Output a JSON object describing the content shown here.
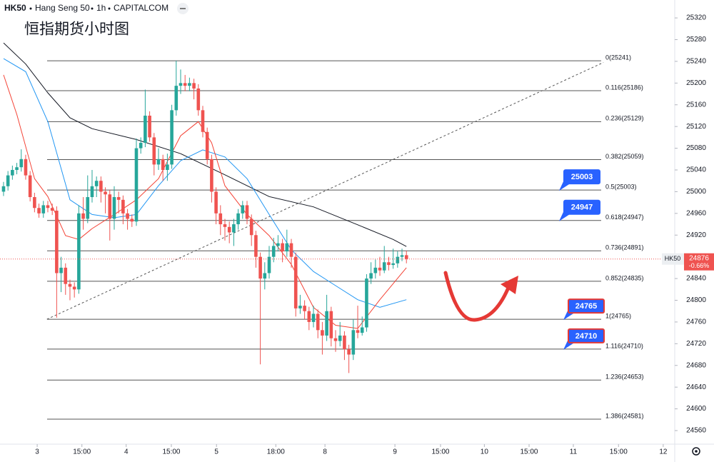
{
  "chart_data": {
    "type": "candlestick",
    "header": {
      "symbol": "HK50",
      "name": "Hang Seng 50",
      "interval": "1h",
      "source": "CAPITALCOM"
    },
    "title": "恒指期货小时图",
    "up_color": "#26a69a",
    "down_color": "#ef5350",
    "open": [
      25000,
      25010,
      25030,
      25040,
      25045,
      25060,
      25030,
      24990,
      24970,
      24960,
      24975,
      24970,
      24965,
      24850,
      24860,
      24830,
      24825,
      24820,
      24960,
      24950,
      24990,
      25010,
      25020,
      25000,
      24995,
      24950,
      24990,
      24985,
      24960,
      24950,
      24945,
      25080,
      25090,
      25140,
      25100,
      25050,
      25060,
      25040,
      25050,
      25150,
      25195,
      25200,
      25195,
      25200,
      25190,
      25150,
      25110,
      25060,
      25000,
      24960,
      24940,
      24935,
      24925,
      24940,
      24960,
      24975,
      24950,
      24920,
      24880,
      24840,
      24850,
      24880,
      24900,
      24905,
      24890,
      24905,
      24880,
      24785,
      24790,
      24780,
      24760,
      24775,
      24745,
      24735,
      24780,
      24730,
      24725,
      24735,
      24710,
      24700,
      24745,
      24740,
      24750,
      24840,
      24850,
      24860,
      24855,
      24870,
      24865,
      24868,
      24880,
      24883
    ],
    "high": [
      25018,
      25038,
      25048,
      25053,
      25078,
      25068,
      25038,
      24998,
      24978,
      24983,
      24983,
      24978,
      24973,
      24880,
      24868,
      24838,
      24833,
      24975,
      24990,
      25030,
      25040,
      25028,
      25028,
      25008,
      25003,
      25010,
      25000,
      24993,
      24968,
      24958,
      25098,
      25100,
      25188,
      25148,
      25108,
      25080,
      25068,
      25070,
      25160,
      25241,
      25225,
      25215,
      25210,
      25208,
      25198,
      25158,
      25118,
      25068,
      25008,
      24975,
      24950,
      24945,
      24950,
      24968,
      24983,
      24983,
      24958,
      24928,
      24888,
      24870,
      24900,
      24915,
      24920,
      24913,
      24930,
      24913,
      24888,
      24810,
      24800,
      24788,
      24790,
      24783,
      24760,
      24810,
      24788,
      24745,
      24760,
      24743,
      24718,
      24765,
      24790,
      24770,
      24848,
      24870,
      24875,
      24880,
      24900,
      24880,
      24895,
      24890,
      24895,
      24891
    ],
    "low": [
      24992,
      25002,
      25022,
      25032,
      25037,
      25022,
      24982,
      24962,
      24952,
      24952,
      24962,
      24957,
      24768,
      24815,
      24810,
      24800,
      24805,
      24812,
      24930,
      24942,
      24980,
      24990,
      24980,
      24960,
      24910,
      24930,
      24960,
      24940,
      24930,
      24935,
      24937,
      25070,
      25082,
      25092,
      25030,
      25040,
      25020,
      25020,
      25042,
      25140,
      25180,
      25185,
      25185,
      25170,
      25140,
      25100,
      25050,
      24980,
      24940,
      24920,
      24910,
      24905,
      24900,
      24930,
      24950,
      24940,
      24900,
      24860,
      24682,
      24820,
      24840,
      24870,
      24890,
      24870,
      24880,
      24860,
      24770,
      24775,
      24765,
      24745,
      24750,
      24730,
      24700,
      24725,
      24715,
      24705,
      24715,
      24690,
      24666,
      24690,
      24730,
      24735,
      24742,
      24830,
      24840,
      24845,
      24850,
      24855,
      24858,
      24860,
      24872,
      24868
    ],
    "close": [
      25010,
      25030,
      25040,
      25045,
      25060,
      25030,
      24990,
      24970,
      24960,
      24975,
      24970,
      24965,
      24850,
      24860,
      24830,
      24825,
      24820,
      24960,
      24950,
      24990,
      25010,
      25020,
      25000,
      24995,
      24950,
      24990,
      24985,
      24960,
      24950,
      24945,
      25080,
      25090,
      25140,
      25100,
      25050,
      25060,
      25040,
      25050,
      25150,
      25195,
      25200,
      25195,
      25200,
      25190,
      25150,
      25110,
      25060,
      25000,
      24960,
      24940,
      24935,
      24925,
      24940,
      24960,
      24975,
      24950,
      24920,
      24880,
      24840,
      24850,
      24880,
      24900,
      24905,
      24890,
      24905,
      24880,
      24785,
      24790,
      24780,
      24760,
      24775,
      24745,
      24735,
      24780,
      24730,
      24725,
      24735,
      24710,
      24700,
      24745,
      24740,
      24750,
      24840,
      24850,
      24860,
      24855,
      24870,
      24865,
      24868,
      24880,
      24883,
      24876
    ],
    "series": [
      {
        "color": "#131722",
        "x": [
          0,
          5,
          10,
          15,
          20,
          30,
          40,
          50,
          60,
          70,
          80,
          88,
          91
        ],
        "values": [
          25274,
          25235,
          25182,
          25136,
          25116,
          25096,
          25070,
          25031,
          24991,
          24972,
          24939,
          24912,
          24899
        ]
      },
      {
        "color": "#2196f3",
        "x": [
          0,
          5,
          10,
          15,
          20,
          25,
          30,
          35,
          40,
          45,
          50,
          55,
          60,
          65,
          70,
          75,
          80,
          85,
          91
        ],
        "values": [
          25245,
          25221,
          25129,
          24985,
          24958,
          24952,
          24958,
          25011,
          25057,
          25077,
          25064,
          25024,
          24958,
          24893,
          24853,
          24827,
          24801,
          24787,
          24801
        ]
      },
      {
        "color": "#f44336",
        "x": [
          0,
          3,
          7,
          10,
          14,
          17,
          20,
          25,
          30,
          35,
          40,
          44,
          47,
          50,
          55,
          60,
          65,
          70,
          75,
          80,
          85,
          91
        ],
        "values": [
          25215,
          25142,
          25024,
          24991,
          24919,
          24912,
          24932,
          24958,
          24985,
          25024,
          25103,
          25129,
          25090,
          25011,
          24958,
          24919,
          24866,
          24787,
          24754,
          24748,
          24801,
          24860
        ]
      }
    ],
    "fib_levels": [
      {
        "value": 25241,
        "label": "0(25241)"
      },
      {
        "value": 25186,
        "label": "0.116(25186)"
      },
      {
        "value": 25129,
        "label": "0.236(25129)"
      },
      {
        "value": 25059,
        "label": "0.382(25059)"
      },
      {
        "value": 25003,
        "label": "0.5(25003)"
      },
      {
        "value": 24947,
        "label": "0.618(24947)"
      },
      {
        "value": 24891,
        "label": "0.736(24891)"
      },
      {
        "value": 24835,
        "label": "0.852(24835)"
      },
      {
        "value": 24765,
        "label": "1(24765)"
      },
      {
        "value": 24710,
        "label": "1.116(24710)"
      },
      {
        "value": 24653,
        "label": "1.236(24653)"
      },
      {
        "value": 24581,
        "label": "1.386(24581)"
      }
    ],
    "trend_line": {
      "x": [
        9.8,
        135.5
      ],
      "values": [
        24765,
        25238
      ]
    },
    "annotations": [
      {
        "value": 25003,
        "color": "#2962ff",
        "border": "#2962ff"
      },
      {
        "value": 24947,
        "color": "#2962ff",
        "border": "#2962ff"
      },
      {
        "value": 24765,
        "color": "#2962ff",
        "border": "#e53935"
      },
      {
        "value": 24710,
        "color": "#2962ff",
        "border": "#e53935"
      }
    ],
    "last_price": {
      "symbol": "HK50",
      "value": 24876,
      "change": "-0.66%",
      "color": "#ef5350"
    },
    "xlim": [
      -0.8,
      151.6
    ],
    "xticks": [
      {
        "value": 7.6,
        "label": "3"
      },
      {
        "value": 17.7,
        "label": "15:00"
      },
      {
        "value": 27.7,
        "label": "4"
      },
      {
        "value": 37.9,
        "label": "15:00"
      },
      {
        "value": 48.1,
        "label": "5"
      },
      {
        "value": 61.5,
        "label": "18:00"
      },
      {
        "value": 72.6,
        "label": "8"
      },
      {
        "value": 88.4,
        "label": "9"
      },
      {
        "value": 98.7,
        "label": "15:00"
      },
      {
        "value": 108.6,
        "label": "10"
      },
      {
        "value": 118.7,
        "label": "15:00"
      },
      {
        "value": 128.7,
        "label": "11"
      },
      {
        "value": 138.9,
        "label": "15:00"
      },
      {
        "value": 149.0,
        "label": "12"
      }
    ],
    "ylim": [
      24535,
      25353
    ],
    "yticks": [
      24560,
      24600,
      24640,
      24680,
      24720,
      24760,
      24800,
      24840,
      24880,
      24920,
      24960,
      25000,
      25040,
      25080,
      25120,
      25160,
      25200,
      25240,
      25280,
      25320
    ]
  }
}
